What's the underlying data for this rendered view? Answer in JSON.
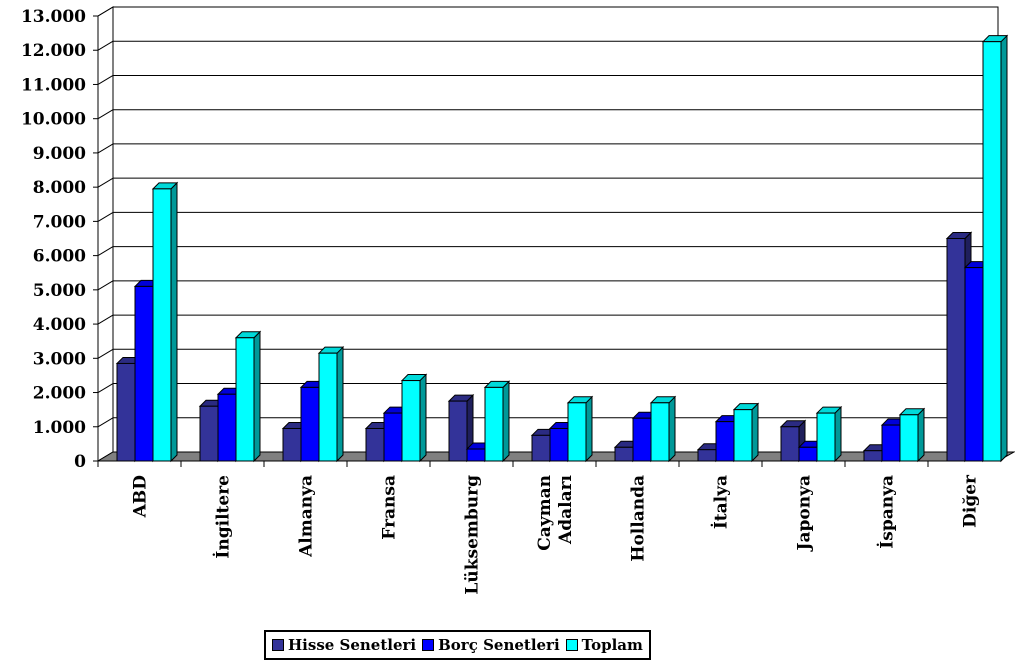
{
  "chart_data": {
    "type": "bar",
    "style": "3d-clustered-column",
    "categories": [
      "ABD",
      "İngiltere",
      "Almanya",
      "Fransa",
      "Lüksemburg",
      "Cayman Adaları",
      "Hollanda",
      "İtalya",
      "Japonya",
      "İspanya",
      "Diğer"
    ],
    "series": [
      {
        "name": "Hisse Senetleri",
        "color": "#333399",
        "values": [
          2850,
          1600,
          950,
          950,
          1750,
          750,
          400,
          330,
          1000,
          300,
          6500
        ]
      },
      {
        "name": "Borç Senetleri",
        "color": "#0000FF",
        "values": [
          5100,
          1950,
          2150,
          1400,
          350,
          950,
          1250,
          1150,
          400,
          1050,
          5650
        ]
      },
      {
        "name": "Toplam",
        "color": "#00FFFF",
        "values": [
          7950,
          3600,
          3150,
          2350,
          2150,
          1700,
          1700,
          1500,
          1400,
          1350,
          12250
        ]
      }
    ],
    "y_ticks": [
      "0",
      "1.000",
      "2.000",
      "3.000",
      "4.000",
      "5.000",
      "6.000",
      "7.000",
      "8.000",
      "9.000",
      "10.000",
      "11.000",
      "12.000",
      "13.000"
    ],
    "ylim": [
      0,
      13000
    ],
    "grid": true,
    "legend_position": "bottom"
  },
  "legend": {
    "items": [
      "Hisse Senetleri",
      "Borç Senetleri",
      "Toplam"
    ]
  }
}
